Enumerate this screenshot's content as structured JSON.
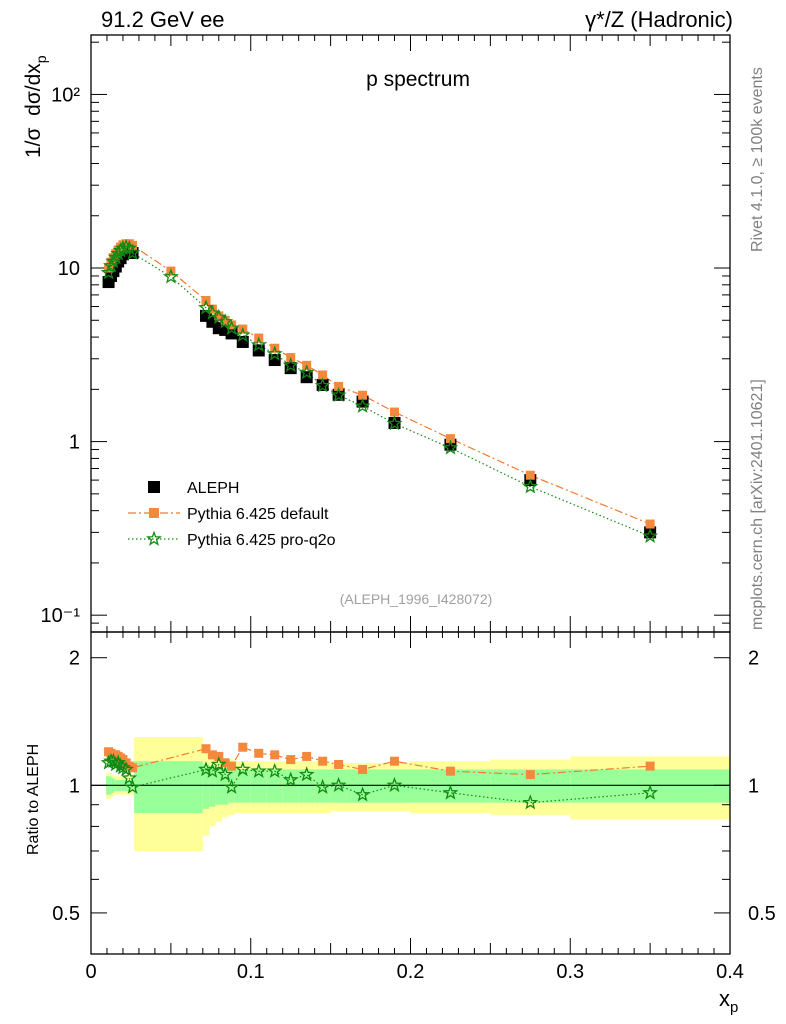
{
  "header": {
    "left": "91.2 GeV ee",
    "right": "γ*/Z (Hadronic)"
  },
  "side_labels": {
    "rivet": "Rivet 4.1.0, ≥ 100k events",
    "mcplots": "mcplots.cern.ch [arXiv:2401.10621]"
  },
  "chart_data": [
    {
      "type": "scatter",
      "panel": "main",
      "title": "p spectrum",
      "watermark": "(ALEPH_1996_I428072)",
      "xlabel": "x_p",
      "ylabel": "1/σ dσ/dx_p",
      "yscale": "log",
      "xlim": [
        0,
        0.4
      ],
      "ylim": [
        0.08,
        220
      ],
      "y_ticks": [
        "10⁻¹",
        "1",
        "10",
        "10²"
      ],
      "legend_position": "bottom-left",
      "series": [
        {
          "name": "ALEPH",
          "style": "black-square",
          "x": [
            0.011,
            0.0125,
            0.014,
            0.0155,
            0.017,
            0.0185,
            0.02,
            0.022,
            0.024,
            0.026,
            0.072,
            0.076,
            0.08,
            0.084,
            0.088,
            0.095,
            0.105,
            0.115,
            0.125,
            0.135,
            0.145,
            0.155,
            0.17,
            0.19,
            0.225,
            0.275,
            0.35
          ],
          "values": [
            8.3,
            9.0,
            9.6,
            10.2,
            10.9,
            11.4,
            12.0,
            12.3,
            12.4,
            12.2,
            5.3,
            4.9,
            4.5,
            4.4,
            4.2,
            3.75,
            3.35,
            2.95,
            2.65,
            2.35,
            2.12,
            1.86,
            1.7,
            1.28,
            0.96,
            0.6,
            0.3
          ]
        },
        {
          "name": "Pythia 6.425 default",
          "style": "orange-dashdot-square",
          "x": [
            0.011,
            0.0125,
            0.014,
            0.0155,
            0.017,
            0.0185,
            0.02,
            0.022,
            0.024,
            0.026,
            0.05,
            0.072,
            0.076,
            0.08,
            0.084,
            0.088,
            0.095,
            0.105,
            0.115,
            0.125,
            0.135,
            0.145,
            0.155,
            0.17,
            0.19,
            0.225,
            0.275,
            0.35
          ],
          "values": [
            10.0,
            10.8,
            11.5,
            12.1,
            12.7,
            13.2,
            13.6,
            13.8,
            13.8,
            13.5,
            9.6,
            6.5,
            5.8,
            5.3,
            5.0,
            4.7,
            4.45,
            3.95,
            3.45,
            3.05,
            2.75,
            2.42,
            2.08,
            1.85,
            1.48,
            1.04,
            0.64,
            0.335
          ]
        },
        {
          "name": "Pythia 6.425 pro-q2o",
          "style": "green-dotted-star",
          "x": [
            0.011,
            0.0125,
            0.014,
            0.0155,
            0.017,
            0.0185,
            0.02,
            0.022,
            0.024,
            0.026,
            0.05,
            0.072,
            0.076,
            0.08,
            0.084,
            0.088,
            0.095,
            0.105,
            0.115,
            0.125,
            0.135,
            0.145,
            0.155,
            0.17,
            0.19,
            0.225,
            0.275,
            0.35
          ],
          "values": [
            9.4,
            10.3,
            10.9,
            11.5,
            12.1,
            12.6,
            13.0,
            13.2,
            13.0,
            12.2,
            8.9,
            5.9,
            5.5,
            5.2,
            4.9,
            4.5,
            4.1,
            3.6,
            3.2,
            2.75,
            2.5,
            2.1,
            1.85,
            1.6,
            1.27,
            0.92,
            0.55,
            0.285
          ]
        }
      ]
    },
    {
      "type": "scatter",
      "panel": "ratio",
      "xlabel": "x_p",
      "ylabel": "Ratio to ALEPH",
      "yscale": "log",
      "xlim": [
        0,
        0.4
      ],
      "ylim": [
        0.4,
        2.3
      ],
      "x_ticks": [
        "0",
        "0.1",
        "0.2",
        "0.3",
        "0.4"
      ],
      "y_ticks": [
        "0.5",
        "1",
        "2"
      ],
      "reference_line": 1,
      "uncertainty_bands": {
        "edges": [
          0.0095,
          0.0115,
          0.013,
          0.0145,
          0.016,
          0.0175,
          0.019,
          0.021,
          0.023,
          0.025,
          0.027,
          0.07,
          0.074,
          0.078,
          0.082,
          0.086,
          0.09,
          0.1,
          0.11,
          0.12,
          0.13,
          0.14,
          0.15,
          0.16,
          0.18,
          0.2,
          0.25,
          0.3,
          0.4
        ],
        "inner_low": [
          0.95,
          0.95,
          0.96,
          0.97,
          0.97,
          0.97,
          0.97,
          0.97,
          0.97,
          0.97,
          0.86,
          0.88,
          0.89,
          0.9,
          0.9,
          0.91,
          0.91,
          0.91,
          0.91,
          0.91,
          0.91,
          0.91,
          0.91,
          0.91,
          0.91,
          0.91,
          0.91,
          0.91
        ],
        "inner_high": [
          1.05,
          1.05,
          1.04,
          1.03,
          1.03,
          1.03,
          1.03,
          1.03,
          1.03,
          1.03,
          1.14,
          1.12,
          1.11,
          1.1,
          1.1,
          1.09,
          1.09,
          1.09,
          1.09,
          1.09,
          1.09,
          1.09,
          1.09,
          1.09,
          1.09,
          1.09,
          1.09,
          1.09
        ],
        "outer_low": [
          0.93,
          0.93,
          0.94,
          0.95,
          0.95,
          0.95,
          0.95,
          0.95,
          0.95,
          0.95,
          0.7,
          0.76,
          0.8,
          0.82,
          0.84,
          0.85,
          0.86,
          0.86,
          0.86,
          0.86,
          0.86,
          0.86,
          0.87,
          0.87,
          0.87,
          0.86,
          0.85,
          0.83
        ],
        "outer_high": [
          1.07,
          1.07,
          1.06,
          1.05,
          1.05,
          1.05,
          1.05,
          1.05,
          1.05,
          1.05,
          1.3,
          1.24,
          1.2,
          1.18,
          1.16,
          1.15,
          1.14,
          1.14,
          1.14,
          1.14,
          1.14,
          1.14,
          1.13,
          1.13,
          1.13,
          1.14,
          1.15,
          1.17
        ],
        "inner_color": "#99ff99",
        "outer_color": "#ffff99"
      },
      "series": [
        {
          "name": "Pythia 6.425 default",
          "style": "orange-dashdot-square",
          "x": [
            0.011,
            0.0125,
            0.014,
            0.0155,
            0.017,
            0.0185,
            0.02,
            0.022,
            0.024,
            0.026,
            0.072,
            0.076,
            0.08,
            0.084,
            0.088,
            0.095,
            0.105,
            0.115,
            0.125,
            0.135,
            0.145,
            0.155,
            0.17,
            0.19,
            0.225,
            0.275,
            0.35
          ],
          "values": [
            1.2,
            1.19,
            1.18,
            1.18,
            1.17,
            1.16,
            1.15,
            1.13,
            1.11,
            1.1,
            1.22,
            1.18,
            1.17,
            1.13,
            1.11,
            1.23,
            1.19,
            1.18,
            1.15,
            1.17,
            1.14,
            1.12,
            1.09,
            1.14,
            1.08,
            1.06,
            1.11
          ]
        },
        {
          "name": "Pythia 6.425 pro-q2o",
          "style": "green-dotted-star",
          "x": [
            0.011,
            0.0125,
            0.014,
            0.0155,
            0.017,
            0.0185,
            0.02,
            0.022,
            0.024,
            0.026,
            0.072,
            0.076,
            0.08,
            0.084,
            0.088,
            0.095,
            0.105,
            0.115,
            0.125,
            0.135,
            0.145,
            0.155,
            0.17,
            0.19,
            0.225,
            0.275,
            0.35
          ],
          "values": [
            1.13,
            1.14,
            1.14,
            1.12,
            1.13,
            1.11,
            1.1,
            1.09,
            1.04,
            0.99,
            1.09,
            1.08,
            1.12,
            1.06,
            0.99,
            1.09,
            1.08,
            1.08,
            1.03,
            1.06,
            0.99,
            1.0,
            0.95,
            1.0,
            0.96,
            0.91,
            0.96
          ]
        }
      ]
    }
  ]
}
